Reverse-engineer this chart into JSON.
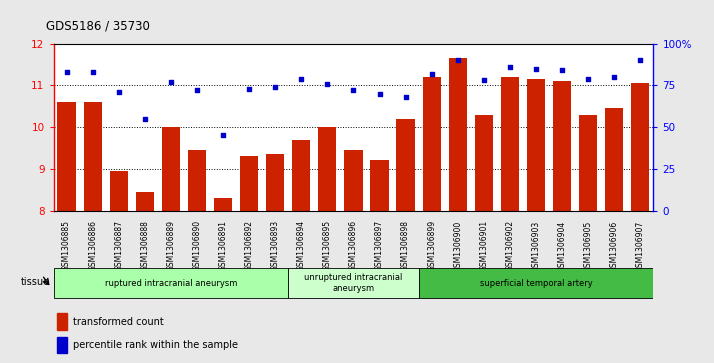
{
  "title": "GDS5186 / 35730",
  "samples": [
    "GSM1306885",
    "GSM1306886",
    "GSM1306887",
    "GSM1306888",
    "GSM1306889",
    "GSM1306890",
    "GSM1306891",
    "GSM1306892",
    "GSM1306893",
    "GSM1306894",
    "GSM1306895",
    "GSM1306896",
    "GSM1306897",
    "GSM1306898",
    "GSM1306899",
    "GSM1306900",
    "GSM1306901",
    "GSM1306902",
    "GSM1306903",
    "GSM1306904",
    "GSM1306905",
    "GSM1306906",
    "GSM1306907"
  ],
  "bar_values": [
    10.6,
    10.6,
    8.95,
    8.45,
    10.0,
    9.45,
    8.3,
    9.3,
    9.35,
    9.7,
    10.0,
    9.45,
    9.2,
    10.2,
    11.2,
    11.65,
    10.3,
    11.2,
    11.15,
    11.1,
    10.3,
    10.45,
    11.05
  ],
  "percentile_values": [
    83,
    83,
    71,
    55,
    77,
    72,
    45,
    73,
    74,
    79,
    76,
    72,
    70,
    68,
    82,
    90,
    78,
    86,
    85,
    84,
    79,
    80,
    90
  ],
  "bar_color": "#CC2200",
  "dot_color": "#0000CC",
  "ylim_left": [
    8,
    12
  ],
  "ylim_right": [
    0,
    100
  ],
  "yticks_left": [
    8,
    9,
    10,
    11,
    12
  ],
  "yticks_right": [
    0,
    25,
    50,
    75,
    100
  ],
  "ytick_labels_right": [
    "0",
    "25",
    "50",
    "75",
    "100%"
  ],
  "groups": [
    {
      "label": "ruptured intracranial aneurysm",
      "start": 0,
      "end": 8,
      "color": "#aaffaa"
    },
    {
      "label": "unruptured intracranial\naneurysm",
      "start": 9,
      "end": 13,
      "color": "#ccffcc"
    },
    {
      "label": "superficial temporal artery",
      "start": 14,
      "end": 22,
      "color": "#44bb44"
    }
  ],
  "tissue_label": "tissue",
  "legend_bar_label": "transformed count",
  "legend_dot_label": "percentile rank within the sample",
  "bg_color": "#e8e8e8",
  "plot_bg_color": "#ffffff"
}
